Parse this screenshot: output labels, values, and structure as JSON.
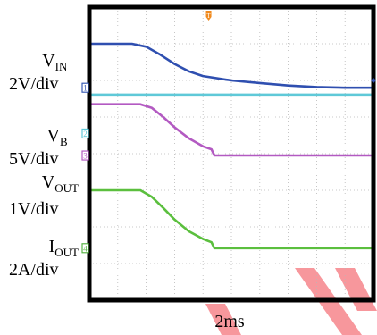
{
  "chart_data": {
    "type": "line",
    "title": "",
    "xlabel": "2ms",
    "x_unit": "div",
    "xlim": [
      0,
      10
    ],
    "ylim": [
      0,
      8
    ],
    "grid": true,
    "trigger_marker": "T",
    "colors": {
      "frame": "#000000",
      "grid": "#b8b8b8",
      "trigger": "#f08a1e",
      "watermark": "#f0414a"
    },
    "channel_labels": [
      {
        "name": "V",
        "sub": "IN",
        "scale": "2V/div",
        "marker": "1",
        "color": "#3a5cb5"
      },
      {
        "name": "V",
        "sub": "B",
        "scale": "5V/div",
        "marker": "2",
        "color": "#5fc9d8"
      },
      {
        "name": "V",
        "sub": "OUT",
        "scale": "1V/div",
        "marker": "3",
        "color": "#b35ac2"
      },
      {
        "name": "I",
        "sub": "OUT",
        "scale": "2A/div",
        "marker": "4",
        "color": "#57b345"
      }
    ],
    "series": [
      {
        "id": "vin",
        "color": "#2f4fb0",
        "x": [
          0,
          1.5,
          2.0,
          2.5,
          3.0,
          3.5,
          4.0,
          5.0,
          6.0,
          7.0,
          8.0,
          9.0,
          10.0
        ],
        "y": [
          7.0,
          7.0,
          6.92,
          6.7,
          6.45,
          6.25,
          6.12,
          6.0,
          5.93,
          5.86,
          5.82,
          5.8,
          5.8
        ]
      },
      {
        "id": "vb",
        "color": "#5fc9d8",
        "x": [
          0,
          10.0
        ],
        "y": [
          5.6,
          5.6
        ]
      },
      {
        "id": "vout",
        "color": "#b35ac2",
        "x": [
          0,
          1.8,
          2.2,
          2.6,
          3.0,
          3.5,
          4.0,
          4.3,
          4.4,
          5.0,
          10.0
        ],
        "y": [
          5.35,
          5.35,
          5.25,
          5.0,
          4.72,
          4.42,
          4.2,
          4.12,
          3.95,
          3.95,
          3.95
        ]
      },
      {
        "id": "iout",
        "color": "#5bbf3e",
        "x": [
          0,
          1.8,
          2.2,
          2.6,
          3.0,
          3.5,
          4.0,
          4.3,
          4.4,
          5.0,
          10.0
        ],
        "y": [
          3.0,
          3.0,
          2.82,
          2.52,
          2.2,
          1.88,
          1.67,
          1.58,
          1.42,
          1.42,
          1.42
        ]
      }
    ]
  }
}
